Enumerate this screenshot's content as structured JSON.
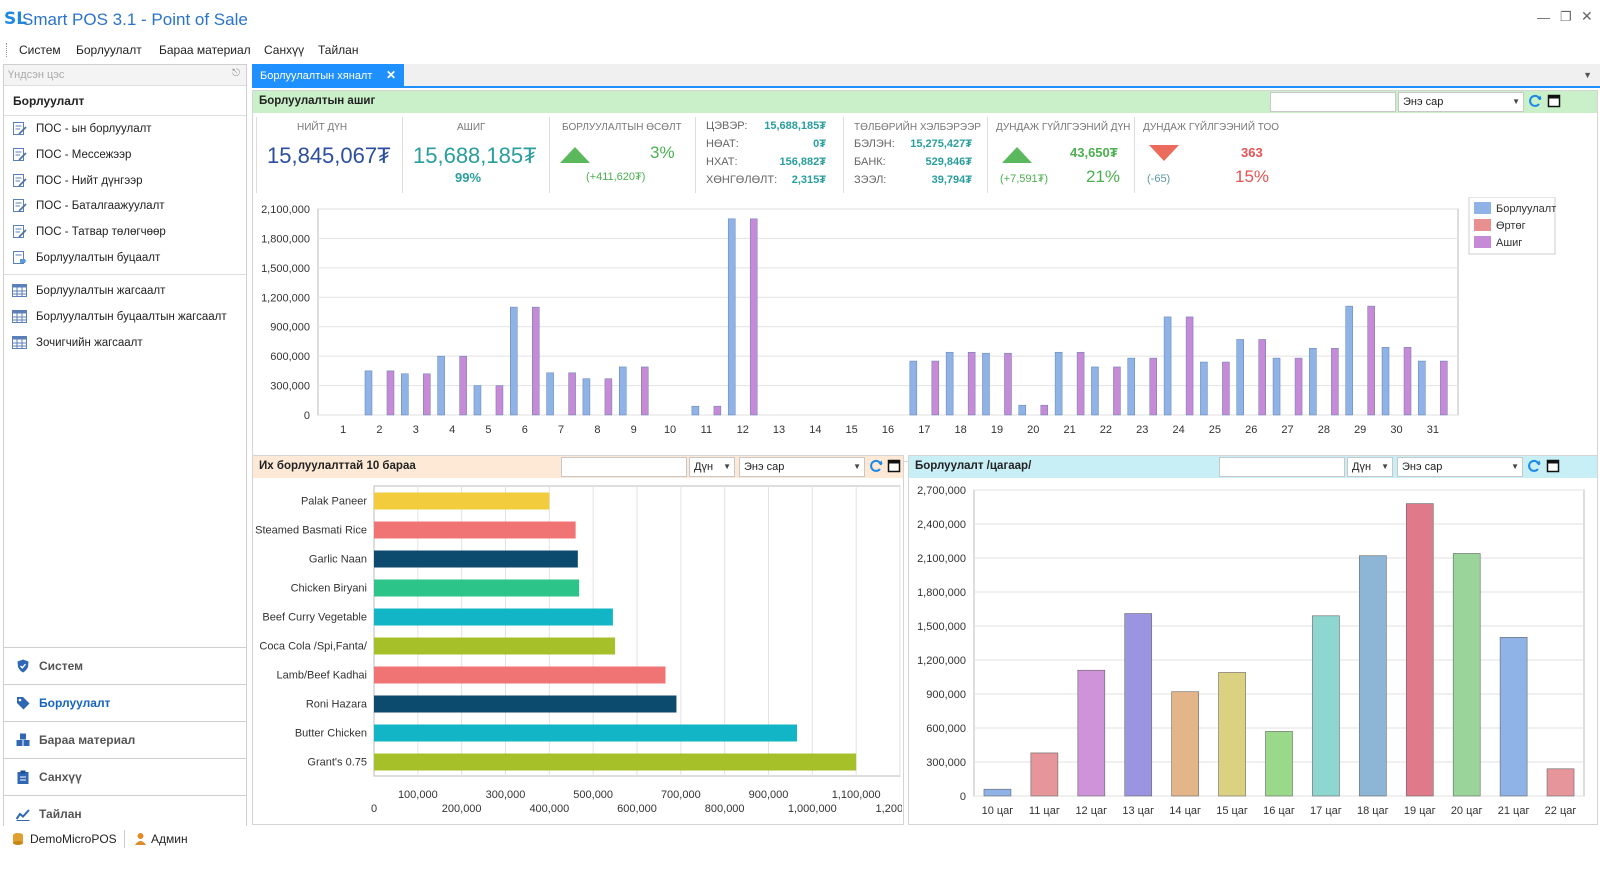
{
  "app": {
    "logo": "SL",
    "title": "Smart POS 3.1 - Point of Sale"
  },
  "window": {
    "minimize_icon": "minimize-icon",
    "restore_icon": "restore-icon",
    "close_icon": "close-icon"
  },
  "menu": [
    "Систем",
    "Борлуулалт",
    "Бараа материал",
    "Санхүү",
    "Тайлан"
  ],
  "sidebar": {
    "header": "Үндсэн цэс",
    "group": "Борлуулалт",
    "items": [
      {
        "label": "ПОС - ын борлуулалт",
        "icon": "document-edit-icon"
      },
      {
        "label": "ПОС - Мессежээр",
        "icon": "document-edit-icon"
      },
      {
        "label": "ПОС - Нийт дүнгээр",
        "icon": "document-edit-icon"
      },
      {
        "label": "ПОС - Баталгаажуулалт",
        "icon": "document-edit-icon"
      },
      {
        "label": "ПОС - Татвар төлөгчөөр",
        "icon": "document-edit-icon"
      },
      {
        "label": "Борлуулалтын буцаалт",
        "icon": "document-tag-icon"
      },
      {
        "label": "Борлуулалтын жагсаалт",
        "icon": "grid-icon"
      },
      {
        "label": "Борлуулалтын буцаалтын жагсаалт",
        "icon": "grid-icon"
      },
      {
        "label": "Зочигчийн жагсаалт",
        "icon": "grid-icon"
      }
    ],
    "nav": [
      {
        "label": "Систем",
        "icon": "shield-icon",
        "active": false
      },
      {
        "label": "Борлуулалт",
        "icon": "tag-icon",
        "active": true
      },
      {
        "label": "Бараа материал",
        "icon": "boxes-icon",
        "active": false
      },
      {
        "label": "Санхүү",
        "icon": "clipboard-icon",
        "active": false
      },
      {
        "label": "Тайлан",
        "icon": "chart-icon",
        "active": false
      }
    ]
  },
  "status": {
    "database": "DemoMicroPOS",
    "user": "Админ"
  },
  "tab": {
    "label": "Борлуулалтын хяналт"
  },
  "profit": {
    "title": "Борлуулалтын ашиг",
    "search_value": "",
    "period": "Энэ сар",
    "total": {
      "title": "НИЙТ ДҮН",
      "value": "15,845,067₮"
    },
    "profit": {
      "title": "АШИГ",
      "value": "15,688,185₮",
      "pct": "99%"
    },
    "growth": {
      "title": "БОРЛУУЛАЛТЫН ӨСӨЛТ",
      "pct": "3%",
      "delta": "(+411,620₮)"
    },
    "tax": [
      {
        "k": "ЦЭВЭР:",
        "v": "15,688,185₮"
      },
      {
        "k": "НӨАТ:",
        "v": "0₮"
      },
      {
        "k": "НХАТ:",
        "v": "156,882₮"
      },
      {
        "k": "ХӨНГӨЛӨЛТ:",
        "v": "2,315₮"
      }
    ],
    "payment": {
      "title": "ТӨЛБӨРИЙН ХЭЛБЭРЭЭР",
      "rows": [
        {
          "k": "БЭЛЭН:",
          "v": "15,275,427₮"
        },
        {
          "k": "БАНК:",
          "v": "529,846₮"
        },
        {
          "k": "ЗЭЭЛ:",
          "v": "39,794₮"
        }
      ]
    },
    "avg_amount": {
      "title": "ДУНДАЖ ГҮЙЛГЭЭНИЙ ДҮН",
      "value": "43,650₮",
      "delta": "(+7,591₮)",
      "pct": "21%"
    },
    "avg_count": {
      "title": "ДУНДАЖ ГҮЙЛГЭЭНИЙ ТОО",
      "value": "363",
      "delta": "(-65)",
      "pct": "15%"
    }
  },
  "top_products": {
    "title": "Их борлуулалттай 10 бараа",
    "search_value": "",
    "metric": "Дүн",
    "period": "Энэ сар"
  },
  "hourly": {
    "title": "Борлуулалт /цагаар/",
    "search_value": "",
    "metric": "Дүн",
    "period": "Энэ сар"
  },
  "chart_data": [
    {
      "type": "bar",
      "x": [
        1,
        2,
        3,
        4,
        5,
        6,
        7,
        8,
        9,
        10,
        11,
        12,
        13,
        14,
        15,
        16,
        17,
        18,
        19,
        20,
        21,
        22,
        23,
        24,
        25,
        26,
        27,
        28,
        29,
        30,
        31
      ],
      "series": [
        {
          "name": "Борлуулалт",
          "color": "#8fb3e6",
          "values": [
            0,
            450000,
            420000,
            600000,
            300000,
            1100000,
            430000,
            370000,
            490000,
            0,
            90000,
            2000000,
            0,
            0,
            0,
            0,
            550000,
            640000,
            630000,
            100000,
            640000,
            490000,
            580000,
            1000000,
            540000,
            770000,
            580000,
            680000,
            1110000,
            690000,
            550000
          ]
        },
        {
          "name": "Өртөг",
          "color": "#e88f8f",
          "values": [
            0,
            0,
            0,
            0,
            0,
            0,
            0,
            0,
            0,
            0,
            0,
            0,
            0,
            0,
            0,
            0,
            0,
            0,
            0,
            0,
            0,
            0,
            0,
            0,
            0,
            0,
            0,
            0,
            0,
            0,
            0
          ]
        },
        {
          "name": "Ашиг",
          "color": "#c68ad6",
          "values": [
            0,
            450000,
            420000,
            600000,
            300000,
            1100000,
            430000,
            370000,
            490000,
            0,
            90000,
            2000000,
            0,
            0,
            0,
            0,
            550000,
            640000,
            630000,
            100000,
            640000,
            490000,
            580000,
            1000000,
            540000,
            770000,
            580000,
            680000,
            1110000,
            690000,
            550000
          ]
        }
      ],
      "ylim": [
        0,
        2100000
      ],
      "yticks": [
        0,
        300000,
        600000,
        900000,
        1200000,
        1500000,
        1800000,
        2100000
      ],
      "ytick_labels": [
        "0",
        "300,000",
        "600,000",
        "900,000",
        "1,200,000",
        "1,500,000",
        "1,800,000",
        "2,100,000"
      ],
      "grid": true,
      "legend": "top-right"
    },
    {
      "type": "bar",
      "orientation": "horizontal",
      "categories": [
        "Palak Paneer",
        "Steamed Basmati Rice",
        "Garlic Naan",
        "Chicken Biryani",
        "Beef Curry Vegetable",
        "Coca Cola /Spi,Fanta/",
        "Lamb/Beef Kadhai",
        "Roni Hazara",
        "Butter Chicken",
        "Grant's 0.75"
      ],
      "values": [
        400000,
        460000,
        465000,
        468000,
        545000,
        550000,
        665000,
        690000,
        965000,
        1100000
      ],
      "colors": [
        "#f2cc3d",
        "#f07474",
        "#0c4a6e",
        "#2dc48a",
        "#12b5c5",
        "#a6c02a",
        "#f07474",
        "#0c4a6e",
        "#12b5c5",
        "#a6c02a"
      ],
      "xlim": [
        0,
        1200000
      ],
      "xticks": [
        100000,
        200000,
        300000,
        400000,
        500000,
        600000,
        700000,
        800000,
        900000,
        1000000,
        1100000,
        1200000
      ],
      "xtick_labels": [
        "100,000",
        "200,000",
        "300,000",
        "400,000",
        "500,000",
        "600,000",
        "700,000",
        "800,000",
        "900,000",
        "1,000,000",
        "1,100,000",
        "1,200,000"
      ],
      "x_origin_label": "0",
      "grid": true
    },
    {
      "type": "bar",
      "categories": [
        "10 цаг",
        "11 цаг",
        "12 цаг",
        "13 цаг",
        "14 цаг",
        "15 цаг",
        "16 цаг",
        "17 цаг",
        "18 цаг",
        "19 цаг",
        "20 цаг",
        "21 цаг",
        "22 цаг"
      ],
      "values": [
        60000,
        380000,
        1110000,
        1610000,
        920000,
        1090000,
        570000,
        1590000,
        2120000,
        2580000,
        2140000,
        1400000,
        240000
      ],
      "colors": [
        "#8fb3e6",
        "#e6959b",
        "#cf93d9",
        "#9b94e0",
        "#e5b58a",
        "#dbd281",
        "#9ad98a",
        "#8ed6d0",
        "#8cb5d6",
        "#e07a8a",
        "#9bd49b",
        "#8fb3e6",
        "#e6959b"
      ],
      "ylim": [
        0,
        2700000
      ],
      "yticks": [
        0,
        300000,
        600000,
        900000,
        1200000,
        1500000,
        1800000,
        2100000,
        2400000,
        2700000
      ],
      "ytick_labels": [
        "0",
        "300,000",
        "600,000",
        "900,000",
        "1,200,000",
        "1,500,000",
        "1,800,000",
        "2,100,000",
        "2,400,000",
        "2,700,000"
      ],
      "grid": true
    }
  ]
}
